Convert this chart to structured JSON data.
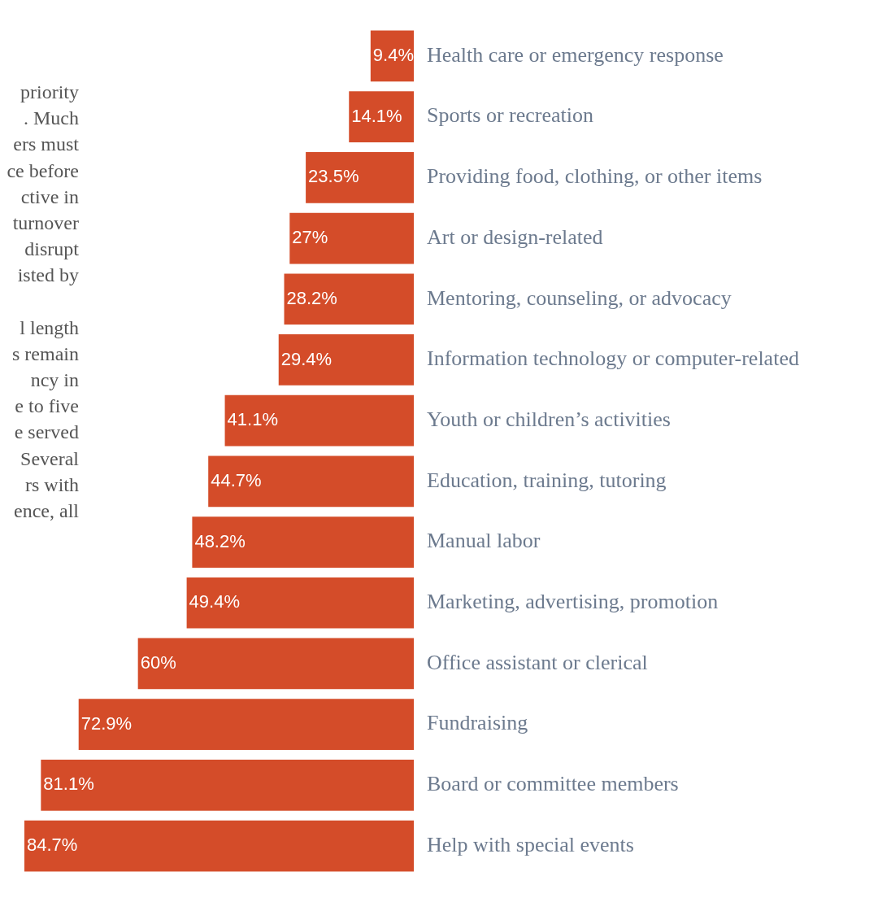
{
  "chart_data": {
    "type": "bar",
    "orientation": "horizontal",
    "color": "#d44c29",
    "legend": false,
    "tick_labels": "y",
    "categories": [
      "Health care or emergency response",
      "Sports or recreation",
      "Providing food, clothing, or other items",
      "Art or design-related",
      "Mentoring, counseling, or advocacy",
      "Information technology or computer-related",
      "Youth or children’s activities",
      "Education, training, tutoring",
      "Manual labor",
      "Marketing, advertising, promotion",
      "Office assistant or clerical",
      "Fundraising",
      "Board or committee members",
      "Help with special events"
    ],
    "values": [
      9.4,
      14.1,
      23.5,
      27,
      28.2,
      29.4,
      41.1,
      44.7,
      48.2,
      49.4,
      60,
      72.9,
      81.1,
      84.7
    ],
    "value_labels": [
      "9.4%",
      "14.1%",
      "23.5%",
      "27%",
      "28.2%",
      "29.4%",
      "41.1%",
      "44.7%",
      "48.2%",
      "49.4%",
      "60%",
      "72.9%",
      "81.1%",
      "84.7%"
    ],
    "annotations": [
      "priority\n. Much\ners must\nce before\nctive in\nturnover\ndisrupt\nisted by",
      "l length\ns remain\nncy in\ne to five\ne served\nSeveral\nrs with\nence, all"
    ]
  }
}
